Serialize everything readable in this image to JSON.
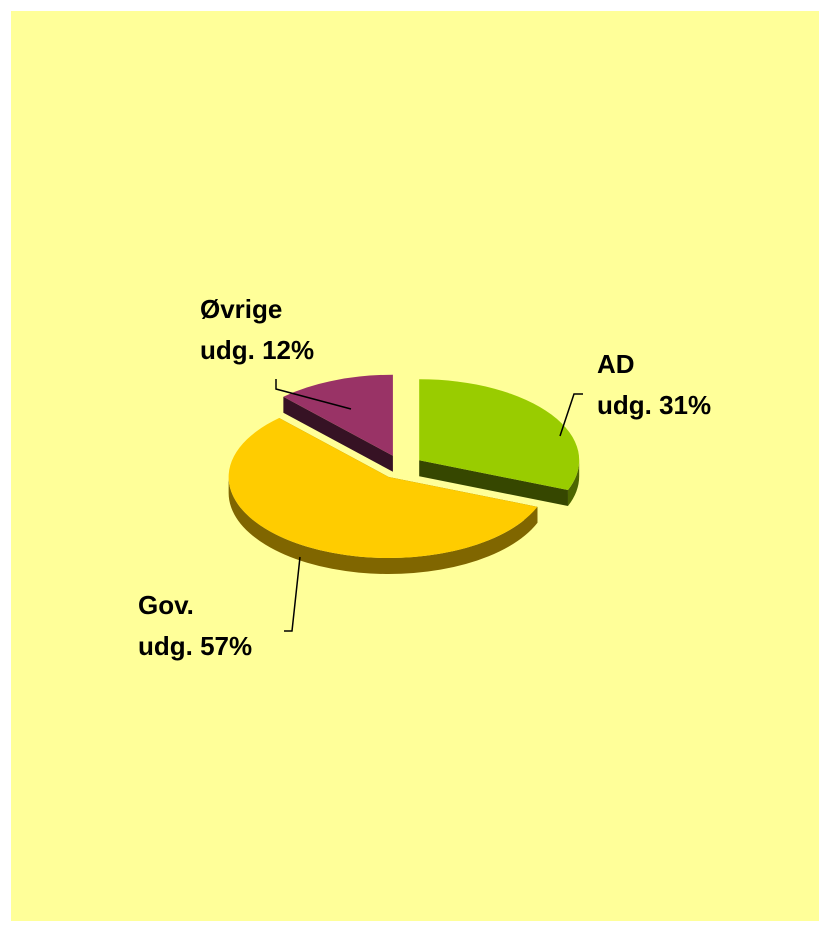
{
  "chart_data": {
    "type": "pie",
    "title": "",
    "style": "3d-exploded",
    "background_color": "#FFFF99",
    "slices": [
      {
        "label_line1": "AD",
        "label_line2": "udg. 31%",
        "value": 31,
        "color": "#99CC00"
      },
      {
        "label_line1": "Gov.",
        "label_line2": "udg. 57%",
        "value": 57,
        "color": "#FFCC00"
      },
      {
        "label_line1": "Øvrige",
        "label_line2": "udg. 12%",
        "value": 12,
        "color": "#993366"
      }
    ]
  }
}
